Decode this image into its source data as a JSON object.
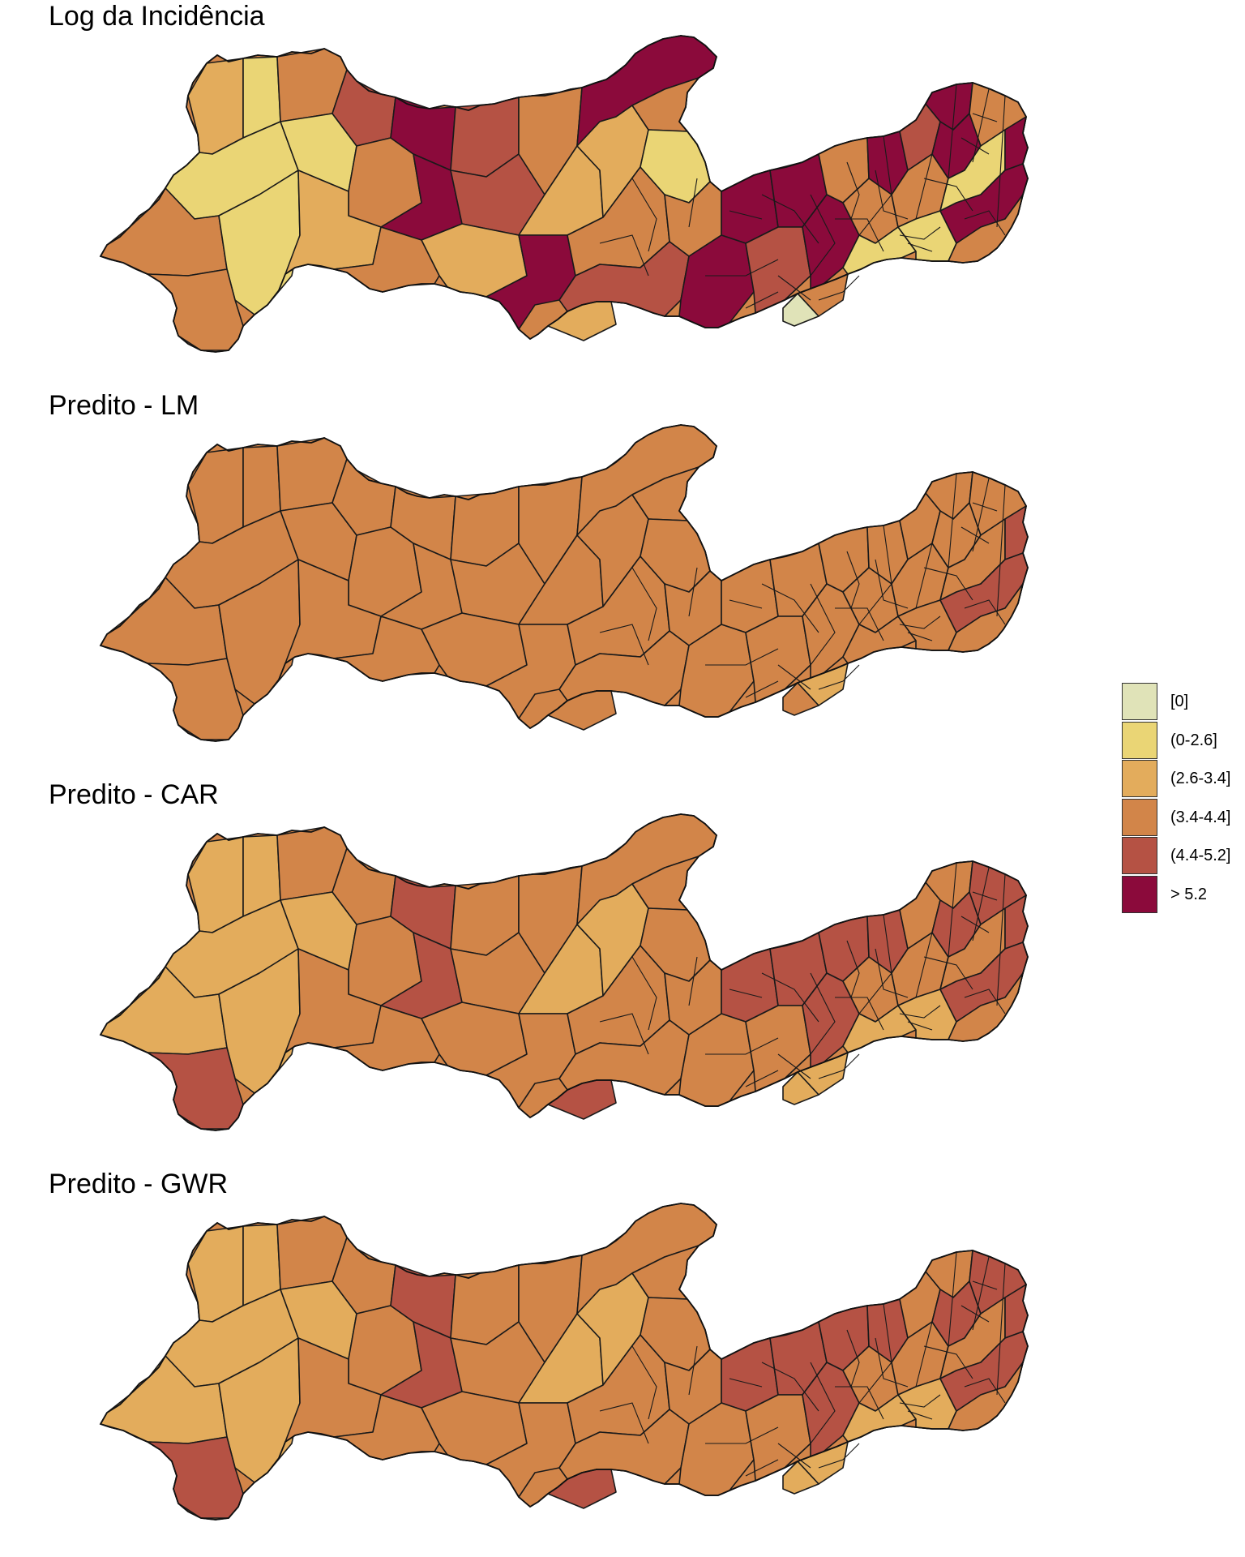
{
  "panels": [
    {
      "title": "Log da Incidência",
      "scheme": "observed"
    },
    {
      "title": "Predito - LM",
      "scheme": "lm"
    },
    {
      "title": "Predito - CAR",
      "scheme": "car"
    },
    {
      "title": "Predito - GWR",
      "scheme": "gwr"
    }
  ],
  "legend": {
    "items": [
      {
        "label": "[0]",
        "color": "#e0e3b8"
      },
      {
        "label": "(0-2.6]",
        "color": "#ead575"
      },
      {
        "label": "(2.6-3.4]",
        "color": "#e3ac5c"
      },
      {
        "label": "(3.4-4.4]",
        "color": "#d28549"
      },
      {
        "label": "(4.4-5.2]",
        "color": "#b55244"
      },
      {
        "label": "> 5.2",
        "color": "#8b0a3b"
      }
    ]
  }
}
